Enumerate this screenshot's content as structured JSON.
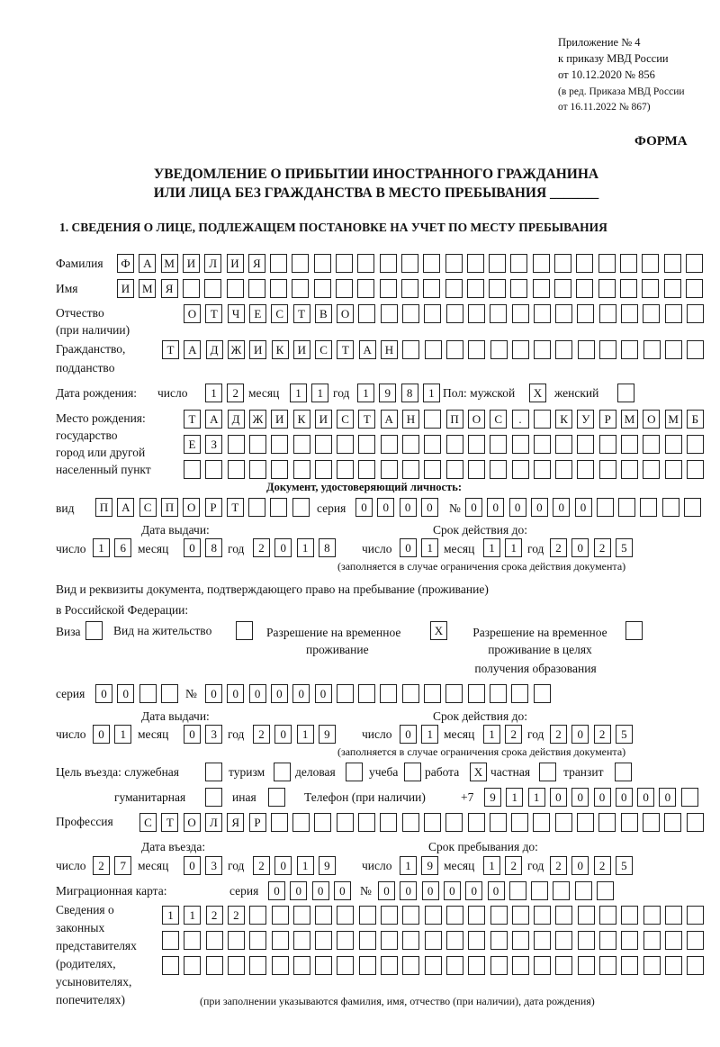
{
  "header": {
    "line1": "Приложение № 4",
    "line2": "к приказу МВД России",
    "line3": "от 10.12.2020 № 856",
    "line4": "(в ред. Приказа МВД России",
    "line5": "от 16.11.2022 № 867)",
    "form_label": "ФОРМА"
  },
  "title": {
    "line1": "УВЕДОМЛЕНИЕ О ПРИБЫТИИ ИНОСТРАННОГО ГРАЖДАНИНА",
    "line2": "ИЛИ ЛИЦА БЕЗ ГРАЖДАНСТВА В МЕСТО ПРЕБЫВАНИЯ _______"
  },
  "section1_title": "1. СВЕДЕНИЯ О ЛИЦЕ, ПОДЛЕЖАЩЕМ ПОСТАНОВКЕ НА УЧЕТ ПО МЕСТУ ПРЕБЫВАНИЯ",
  "labels": {
    "surname": "Фамилия",
    "name": "Имя",
    "patronymic": "Отчество",
    "patronymic2": "(при наличии)",
    "citizenship": "Гражданство,",
    "citizenship2": "подданство",
    "birth_date": "Дата рождения:",
    "day": "число",
    "month": "месяц",
    "year": "год",
    "sex": "Пол: мужской",
    "female": "женский",
    "birthplace1": "Место рождения:",
    "birthplace2": "государство",
    "birthplace3": "город или другой",
    "birthplace4": "населенный пункт",
    "id_doc": "Документ, удостоверяющий личность:",
    "kind": "вид",
    "series": "серия",
    "number": "№",
    "issue_date": "Дата выдачи:",
    "valid_until": "Срок действия до:",
    "valid_note": "(заполняется в случае ограничения срока действия документа)",
    "right_doc1": "Вид и реквизиты документа, подтверждающего право на пребывание (проживание)",
    "right_doc2": "в Российской Федерации:",
    "visa": "Виза",
    "residence": "Вид на жительство",
    "temp_res1": "Разрешение на временное",
    "temp_res2": "проживание",
    "temp_edu1": "Разрешение на временное",
    "temp_edu2": "проживание в целях",
    "temp_edu3": "получения образования",
    "purpose": "Цель въезда: служебная",
    "tourism": "туризм",
    "business": "деловая",
    "study": "учеба",
    "work": "работа",
    "private": "частная",
    "transit": "транзит",
    "humanitarian": "гуманитарная",
    "other": "иная",
    "phone": "Телефон (при наличии)",
    "phone_prefix": "+7",
    "profession": "Профессия",
    "entry_date": "Дата въезда:",
    "stay_until": "Срок пребывания до:",
    "migration_card": "Миграционная карта:",
    "reps1": "Сведения о",
    "reps2": "законных",
    "reps3": "представителях",
    "reps4": "(родителях,",
    "reps5": "усыновителях,",
    "reps6": "попечителях)",
    "reps_note": "(при заполнении указываются фамилия, имя, отчество (при наличии), дата рождения)"
  },
  "fields": {
    "surname": "ФАМИЛИЯ",
    "name": "ИМЯ",
    "patronymic": "ОТЧЕСТВО",
    "citizenship": "ТАДЖИКИСТАН",
    "birth_day": "12",
    "birth_month": "11",
    "birth_year": "1981",
    "sex_male": "X",
    "sex_female": "",
    "birthplace_1": "ТАДЖИКИСТАН ПОС. КУРМОМБ",
    "birthplace_2": "ЕЗ",
    "birthplace_3": "",
    "id_kind": "ПАСПОРТ",
    "id_series": "0000",
    "id_number": "000000",
    "id_issue_day": "16",
    "id_issue_month": "08",
    "id_issue_year": "2018",
    "id_valid_day": "01",
    "id_valid_month": "11",
    "id_valid_year": "2025",
    "visa": "",
    "residence": "",
    "temp_res": "X",
    "temp_edu": "",
    "rd_series": "00",
    "rd_number": "000000",
    "rd_issue_day": "01",
    "rd_issue_month": "03",
    "rd_issue_year": "2019",
    "rd_valid_day": "01",
    "rd_valid_month": "12",
    "rd_valid_year": "2025",
    "p_service": "",
    "p_tourism": "",
    "p_business": "",
    "p_study": "",
    "p_work": "X",
    "p_private": "",
    "p_transit": "",
    "p_humanitarian": "",
    "p_other": "",
    "phone": "911000000",
    "profession": "СТОЛЯР",
    "entry_day": "27",
    "entry_month": "03",
    "entry_year": "2019",
    "stay_day": "19",
    "stay_month": "12",
    "stay_year": "2025",
    "mc_series": "0000",
    "mc_number": "000000",
    "reps_1": "1122",
    "reps_2": "",
    "reps_3": ""
  }
}
